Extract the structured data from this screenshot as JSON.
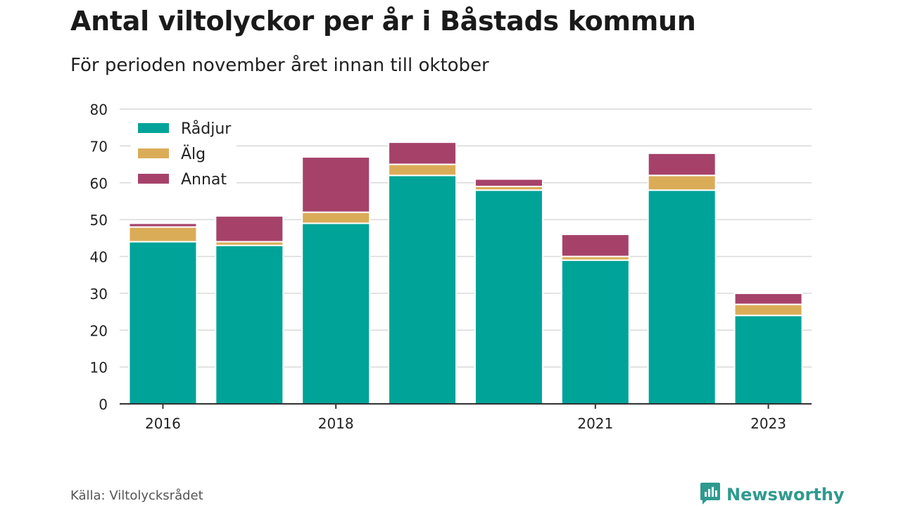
{
  "title": "Antal viltolyckor per år i Båstads kommun",
  "subtitle": "För perioden november året innan till oktober",
  "source": "Källa: Viltolycksrådet",
  "brand": {
    "name": "Newsworthy",
    "icon": "newsworthy-logo-icon",
    "color": "#2f9a8f"
  },
  "chart_data": {
    "type": "bar",
    "stacked": true,
    "categories": [
      "2016",
      "2017",
      "2018",
      "2019",
      "2020",
      "2021",
      "2022",
      "2023"
    ],
    "x_tick_labels": [
      "2016",
      "",
      "2018",
      "",
      "",
      "2021",
      "",
      "2023"
    ],
    "series": [
      {
        "name": "Rådjur",
        "color": "#00a398",
        "values": [
          44,
          43,
          49,
          62,
          58,
          39,
          58,
          24
        ]
      },
      {
        "name": "Älg",
        "color": "#dbac58",
        "values": [
          4,
          1,
          3,
          3,
          1,
          1,
          4,
          3
        ]
      },
      {
        "name": "Annat",
        "color": "#a6426a",
        "values": [
          1,
          7,
          15,
          6,
          2,
          6,
          6,
          3
        ]
      }
    ],
    "ylim": [
      0,
      80
    ],
    "yticks": [
      0,
      10,
      20,
      30,
      40,
      50,
      60,
      70,
      80
    ],
    "grid": true,
    "legend": "top-left",
    "xlabel": "",
    "ylabel": ""
  }
}
